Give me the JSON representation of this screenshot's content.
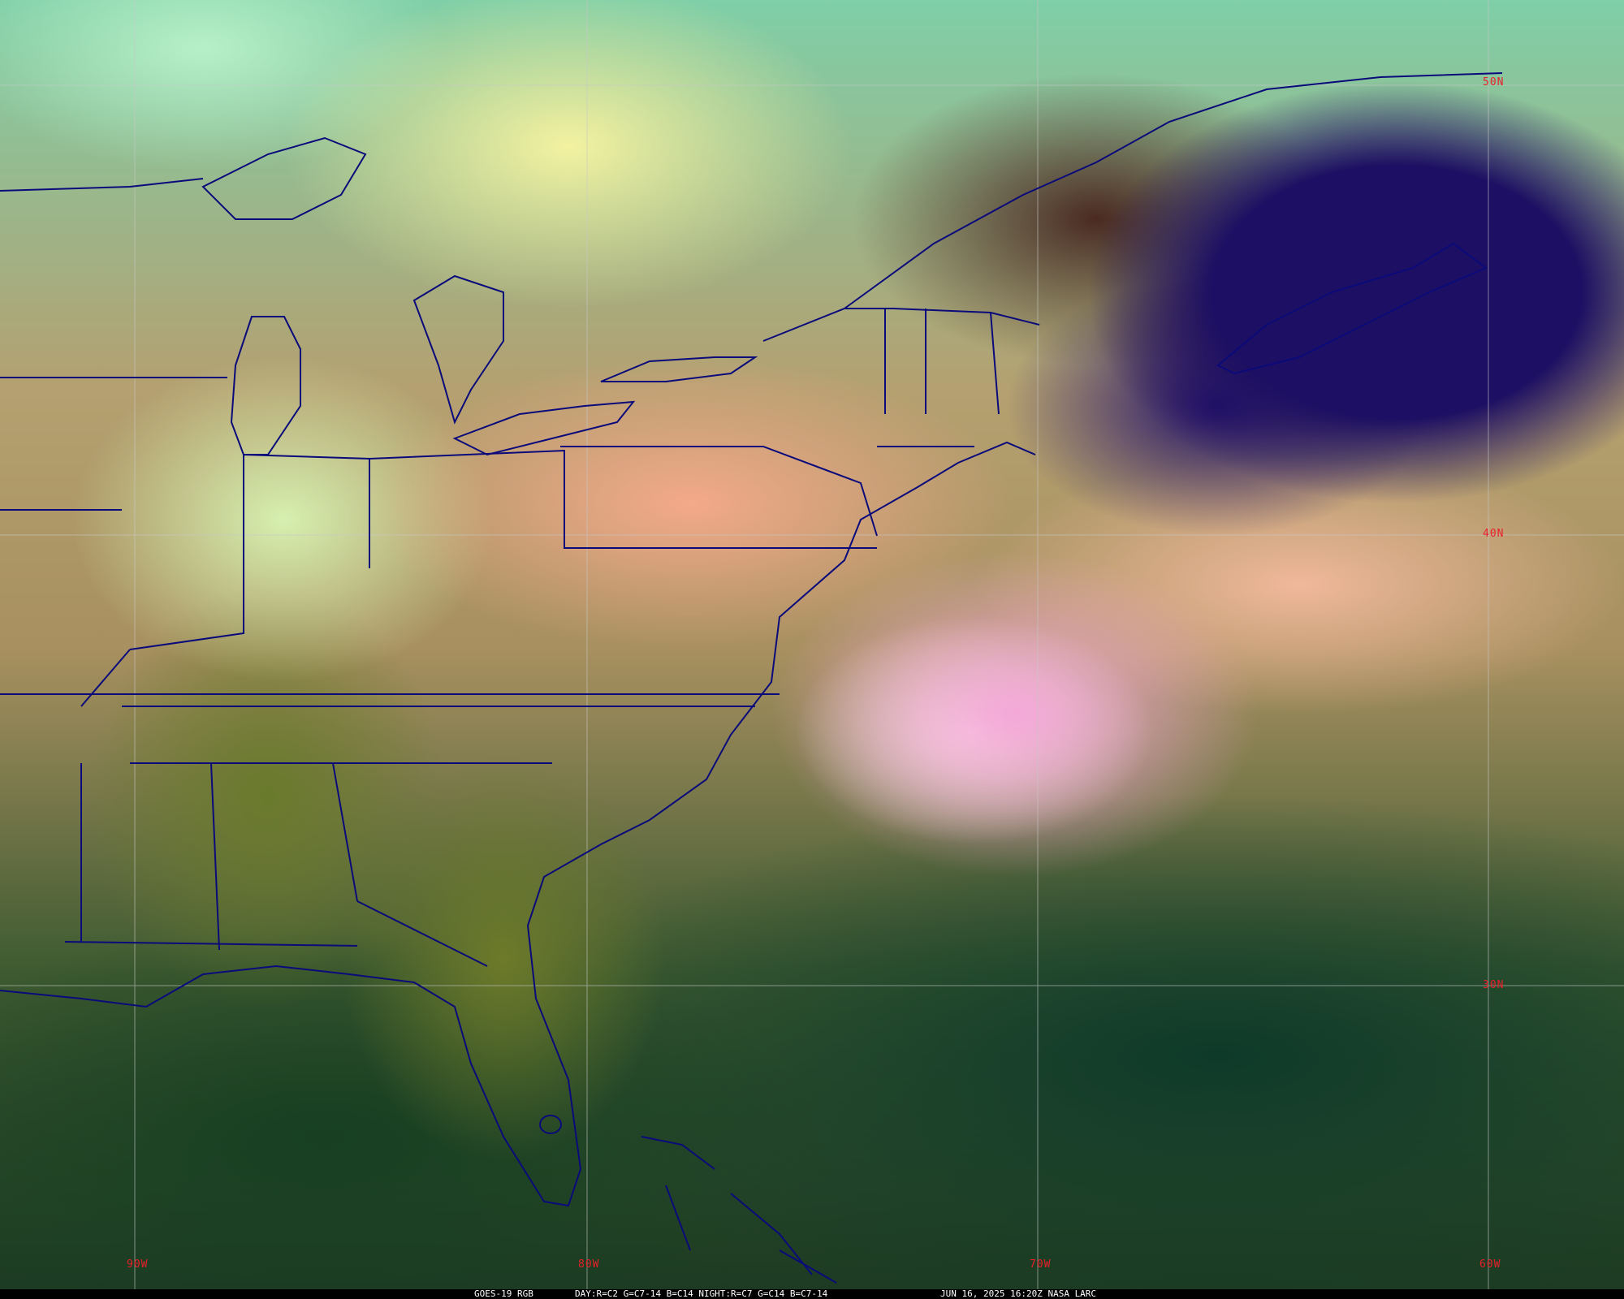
{
  "caption": {
    "satellite": "GOES-19 RGB",
    "recipe": "DAY:R=C2 G=C7-14 B=C14 NIGHT:R=C7 G=C14 B=C7-14",
    "timestamp": "JUN 16, 2025 16:20Z NASA LARC"
  },
  "grid": {
    "latitudes": [
      "50N",
      "40N",
      "30N"
    ],
    "longitudes": [
      "90W",
      "80W",
      "70W",
      "60W"
    ],
    "label_color": "#e8202a",
    "line_color": "#c8c8c8"
  },
  "boundary_color": "#0a0a7a"
}
